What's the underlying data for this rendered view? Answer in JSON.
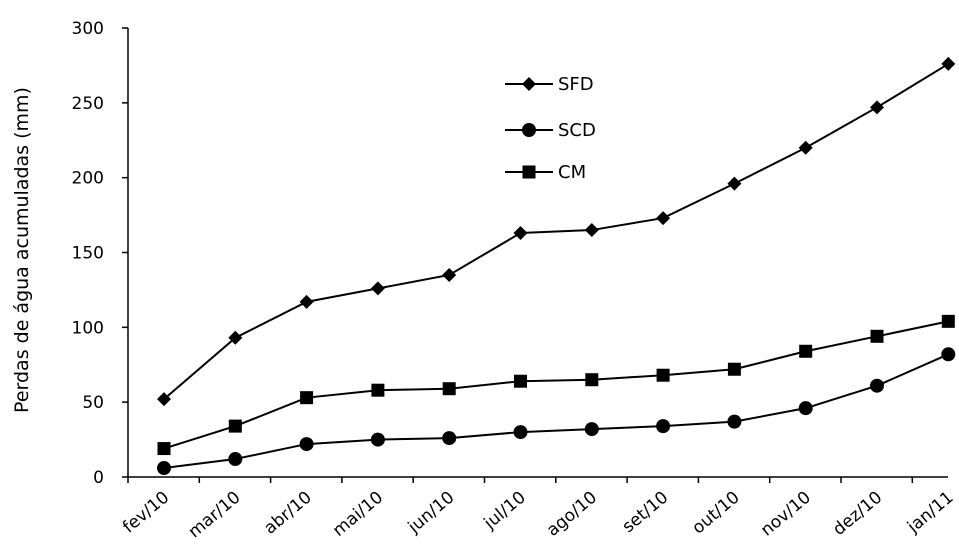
{
  "chart_data": {
    "type": "line",
    "title": "",
    "xlabel": "",
    "ylabel": "Perdas de água acumuladas (mm)",
    "ylim": [
      0,
      300
    ],
    "yticks": [
      0,
      50,
      100,
      150,
      200,
      250,
      300
    ],
    "grid": false,
    "legend_position": "top-center",
    "categories": [
      "fev/10",
      "mar/10",
      "abr/10",
      "mai/10",
      "jun/10",
      "jul/10",
      "ago/10",
      "set/10",
      "out/10",
      "nov/10",
      "dez/10",
      "jan/11"
    ],
    "series": [
      {
        "name": "SFD",
        "marker": "diamond",
        "color": "#000000",
        "values": [
          52,
          93,
          117,
          126,
          135,
          163,
          165,
          173,
          196,
          220,
          247,
          276
        ]
      },
      {
        "name": "SCD",
        "marker": "circle",
        "color": "#000000",
        "values": [
          6,
          12,
          22,
          25,
          26,
          30,
          32,
          34,
          37,
          46,
          61,
          82
        ]
      },
      {
        "name": "CM",
        "marker": "square",
        "color": "#000000",
        "values": [
          19,
          34,
          53,
          58,
          59,
          64,
          65,
          68,
          72,
          84,
          94,
          104
        ]
      }
    ]
  }
}
